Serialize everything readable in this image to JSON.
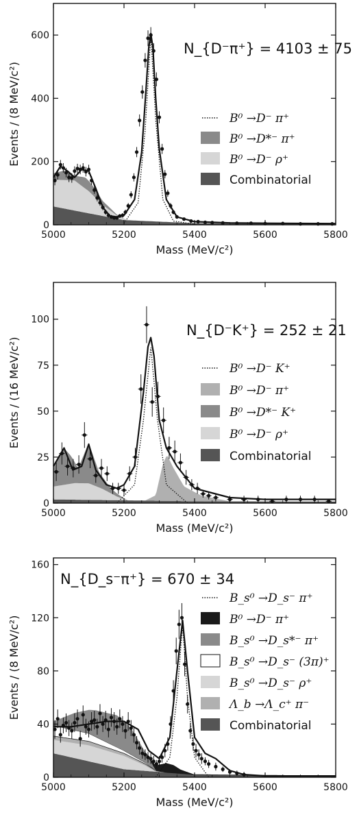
{
  "chart_data": [
    {
      "type": "line",
      "xlabel": "Mass (MeV/c²)",
      "ylabel": "Events / (8 MeV/c²)",
      "xlim": [
        5000,
        5800
      ],
      "ylim": [
        0,
        700
      ],
      "xticks": [
        "5000",
        "5200",
        "5400",
        "5600",
        "5800"
      ],
      "yticks": [
        "0",
        "200",
        "400",
        "600"
      ],
      "yield_label": "N_{D⁻π⁺} = 4103 ± 75",
      "legend": [
        {
          "style": "dotted",
          "text": "B⁰ →D⁻ π⁺"
        },
        {
          "style": "fill",
          "color": "#8a8a8a",
          "text": "B⁰ →D*⁻ π⁺"
        },
        {
          "style": "fill",
          "color": "#d6d6d6",
          "text": "B⁰ →D⁻ ρ⁺"
        },
        {
          "style": "fill",
          "color": "#555555",
          "text": "Combinatorial"
        }
      ],
      "components": {
        "combinatorial": {
          "x": [
            5000,
            5200,
            5400,
            5800
          ],
          "y": [
            58,
            15,
            5,
            3
          ]
        },
        "rho": {
          "x": [
            5000,
            5060,
            5100,
            5140,
            5180,
            5210
          ],
          "y": [
            85,
            95,
            70,
            35,
            10,
            0
          ]
        },
        "dstar": {
          "x": [
            5000,
            5030,
            5060,
            5090,
            5110,
            5140,
            5180,
            5210
          ],
          "y": [
            20,
            30,
            15,
            35,
            30,
            12,
            3,
            0
          ]
        },
        "signal_dotted": {
          "x": [
            5200,
            5240,
            5260,
            5276,
            5290,
            5310,
            5340,
            5400
          ],
          "y": [
            5,
            70,
            300,
            600,
            330,
            80,
            12,
            2
          ]
        },
        "total": {
          "x": [
            5000,
            5020,
            5040,
            5060,
            5080,
            5100,
            5120,
            5140,
            5160,
            5180,
            5200,
            5230,
            5250,
            5262,
            5270,
            5276,
            5282,
            5290,
            5300,
            5320,
            5350,
            5400,
            5500,
            5600,
            5800
          ],
          "y": [
            150,
            185,
            170,
            150,
            175,
            170,
            115,
            55,
            28,
            25,
            30,
            80,
            230,
            420,
            560,
            605,
            560,
            400,
            240,
            80,
            25,
            10,
            6,
            5,
            4
          ]
        }
      },
      "points": {
        "x": [
          5004,
          5012,
          5020,
          5028,
          5036,
          5044,
          5052,
          5060,
          5068,
          5076,
          5084,
          5092,
          5100,
          5108,
          5116,
          5124,
          5132,
          5140,
          5148,
          5156,
          5164,
          5172,
          5180,
          5188,
          5196,
          5204,
          5212,
          5220,
          5228,
          5236,
          5244,
          5252,
          5260,
          5268,
          5276,
          5284,
          5292,
          5300,
          5308,
          5316,
          5324,
          5332,
          5340,
          5350,
          5370,
          5390,
          5410,
          5430,
          5450,
          5480,
          5520,
          5560,
          5600,
          5650,
          5700,
          5750,
          5790
        ],
        "y": [
          140,
          158,
          190,
          180,
          165,
          150,
          148,
          170,
          178,
          175,
          180,
          168,
          175,
          140,
          110,
          85,
          70,
          55,
          40,
          30,
          25,
          22,
          22,
          28,
          30,
          40,
          60,
          95,
          150,
          230,
          330,
          420,
          520,
          590,
          600,
          550,
          460,
          340,
          240,
          160,
          100,
          60,
          40,
          25,
          18,
          12,
          10,
          8,
          7,
          6,
          5,
          5,
          4,
          4,
          3,
          3,
          3
        ],
        "err": [
          15,
          15,
          15,
          15,
          15,
          15,
          15,
          15,
          15,
          15,
          15,
          15,
          15,
          14,
          12,
          11,
          10,
          9,
          8,
          7,
          6,
          6,
          6,
          6,
          7,
          8,
          9,
          11,
          13,
          16,
          19,
          21,
          23,
          25,
          25,
          24,
          22,
          19,
          16,
          13,
          11,
          9,
          7,
          6,
          5,
          4,
          4,
          3,
          3,
          3,
          3,
          3,
          2,
          2,
          2,
          2,
          2
        ]
      }
    },
    {
      "type": "line",
      "xlabel": "Mass (MeV/c²)",
      "ylabel": "Events / (16 MeV/c²)",
      "xlim": [
        5000,
        5800
      ],
      "ylim": [
        0,
        120
      ],
      "xticks": [
        "5000",
        "5200",
        "5400",
        "5600",
        "5800"
      ],
      "yticks": [
        "0",
        "25",
        "50",
        "75",
        "100"
      ],
      "yield_label": "N_{D⁻K⁺} = 252 ± 21",
      "legend": [
        {
          "style": "dotted",
          "text": "B⁰ →D⁻ K⁺"
        },
        {
          "style": "fill",
          "color": "#b0b0b0",
          "text": "B⁰ →D⁻ π⁺"
        },
        {
          "style": "fill",
          "color": "#8a8a8a",
          "text": "B⁰ →D*⁻ K⁺"
        },
        {
          "style": "fill",
          "color": "#d6d6d6",
          "text": "B⁰ →D⁻ ρ⁺"
        },
        {
          "style": "fill",
          "color": "#555555",
          "text": "Combinatorial"
        }
      ],
      "components": {
        "combinatorial": {
          "x": [
            5000,
            5200,
            5400,
            5800
          ],
          "y": [
            2,
            1.5,
            1,
            0.8
          ]
        },
        "rho": {
          "x": [
            5000,
            5060,
            5100,
            5140,
            5180,
            5210
          ],
          "y": [
            7,
            9,
            9,
            6,
            2,
            0
          ]
        },
        "dstar": {
          "x": [
            5000,
            5030,
            5050,
            5070,
            5100,
            5130,
            5160,
            5190,
            5210
          ],
          "y": [
            10,
            20,
            15,
            8,
            22,
            8,
            3,
            1,
            0
          ]
        },
        "dpi": {
          "x": [
            5260,
            5290,
            5310,
            5322,
            5340,
            5370,
            5420,
            5500
          ],
          "y": [
            0,
            3,
            20,
            25,
            18,
            8,
            3,
            0
          ]
        },
        "signal_dotted": {
          "x": [
            5180,
            5230,
            5255,
            5276,
            5295,
            5320,
            5380
          ],
          "y": [
            0,
            10,
            45,
            85,
            45,
            10,
            0
          ]
        },
        "total": {
          "x": [
            5000,
            5030,
            5055,
            5080,
            5100,
            5120,
            5150,
            5180,
            5200,
            5230,
            5255,
            5268,
            5276,
            5285,
            5300,
            5320,
            5350,
            5400,
            5500,
            5600,
            5800
          ],
          "y": [
            20,
            30,
            18,
            20,
            32,
            18,
            10,
            8,
            10,
            20,
            60,
            85,
            90,
            80,
            45,
            30,
            20,
            8,
            3,
            2,
            2
          ]
        }
      },
      "points": {
        "x": [
          5008,
          5024,
          5040,
          5056,
          5072,
          5088,
          5104,
          5120,
          5136,
          5152,
          5168,
          5184,
          5200,
          5216,
          5232,
          5248,
          5264,
          5280,
          5296,
          5312,
          5328,
          5344,
          5360,
          5376,
          5392,
          5408,
          5424,
          5440,
          5460,
          5500,
          5540,
          5580,
          5620,
          5660,
          5700,
          5740,
          5780
        ],
        "y": [
          17,
          27,
          20,
          19,
          21,
          37,
          24,
          15,
          19,
          16,
          8,
          8,
          7,
          16,
          25,
          62,
          97,
          55,
          58,
          45,
          30,
          28,
          22,
          14,
          10,
          8,
          5,
          4,
          3,
          2,
          2,
          2,
          1,
          2,
          2,
          2,
          1
        ],
        "err": [
          5,
          6,
          5,
          5,
          5,
          7,
          5,
          4,
          5,
          4,
          3,
          3,
          3,
          4,
          5,
          8,
          10,
          8,
          8,
          7,
          6,
          6,
          5,
          4,
          3,
          3,
          2,
          2,
          2,
          2,
          2,
          2,
          1,
          2,
          2,
          2,
          1
        ]
      }
    },
    {
      "type": "line",
      "xlabel": "Mass (MeV/c²)",
      "ylabel": "Events / (8 MeV/c²)",
      "xlim": [
        5000,
        5800
      ],
      "ylim": [
        0,
        165
      ],
      "xticks": [
        "5000",
        "5200",
        "5400",
        "5600",
        "5800"
      ],
      "yticks": [
        "0",
        "40",
        "80",
        "120",
        "160"
      ],
      "yield_label": "N_{D_s⁻π⁺} = 670 ± 34",
      "legend": [
        {
          "style": "dotted",
          "text": "B_s⁰ →D_s⁻ π⁺"
        },
        {
          "style": "fill",
          "color": "#1a1a1a",
          "text": "B⁰ →D⁻ π⁺"
        },
        {
          "style": "fill",
          "color": "#8a8a8a",
          "text": "B_s⁰ →D_s*⁻ π⁺"
        },
        {
          "style": "fill",
          "color": "#ffffff",
          "text": "B_s⁰ →D_s⁻ (3π)⁺"
        },
        {
          "style": "fill",
          "color": "#d6d6d6",
          "text": "B_s⁰ →D_s⁻ ρ⁺"
        },
        {
          "style": "fill",
          "color": "#b0b0b0",
          "text": "Λ_b →Λ_c⁺ π⁻"
        },
        {
          "style": "fill",
          "color": "#555555",
          "text": "Combinatorial"
        }
      ],
      "components": {
        "combinatorial": {
          "x": [
            5000,
            5200,
            5400,
            5800
          ],
          "y": [
            18,
            6,
            2,
            1
          ]
        },
        "rho": {
          "x": [
            5000,
            5100,
            5200,
            5260,
            5290
          ],
          "y": [
            10,
            12,
            10,
            4,
            0
          ]
        },
        "lambda_b": {
          "x": [
            5000,
            5100,
            5200,
            5280,
            5320
          ],
          "y": [
            3,
            3,
            2,
            1,
            0
          ]
        },
        "three_pi": {
          "x": [
            5000,
            5100,
            5200,
            5260,
            5290
          ],
          "y": [
            8,
            6,
            2,
            1,
            0
          ]
        },
        "dstar": {
          "x": [
            5000,
            5060,
            5120,
            5180,
            5220,
            5260,
            5290
          ],
          "y": [
            3,
            13,
            20,
            24,
            20,
            8,
            0
          ]
        },
        "b0_dpi": {
          "x": [
            5260,
            5300,
            5320,
            5340,
            5360,
            5400
          ],
          "y": [
            0,
            5,
            7,
            6,
            3,
            0
          ]
        },
        "signal_dotted": {
          "x": [
            5290,
            5330,
            5350,
            5366,
            5380,
            5400,
            5440
          ],
          "y": [
            0,
            15,
            60,
            115,
            60,
            15,
            0
          ]
        },
        "total": {
          "x": [
            5000,
            5050,
            5100,
            5150,
            5200,
            5240,
            5270,
            5300,
            5330,
            5350,
            5366,
            5380,
            5400,
            5430,
            5460,
            5500,
            5540,
            5600,
            5800
          ],
          "y": [
            38,
            38,
            40,
            42,
            42,
            36,
            20,
            14,
            30,
            80,
            118,
            80,
            30,
            18,
            14,
            5,
            2,
            1,
            1
          ]
        }
      },
      "points": {
        "x": [
          5004,
          5012,
          5020,
          5028,
          5036,
          5044,
          5052,
          5060,
          5068,
          5076,
          5084,
          5092,
          5100,
          5108,
          5116,
          5124,
          5132,
          5140,
          5148,
          5156,
          5164,
          5172,
          5180,
          5188,
          5196,
          5204,
          5212,
          5220,
          5228,
          5236,
          5244,
          5252,
          5260,
          5268,
          5276,
          5284,
          5292,
          5300,
          5308,
          5316,
          5324,
          5332,
          5340,
          5348,
          5356,
          5364,
          5372,
          5380,
          5388,
          5396,
          5404,
          5412,
          5420,
          5430,
          5440,
          5460,
          5480,
          5500,
          5520,
          5540
        ],
        "y": [
          36,
          44,
          32,
          39,
          41,
          37,
          35,
          41,
          44,
          29,
          47,
          38,
          36,
          42,
          43,
          38,
          48,
          40,
          43,
          36,
          45,
          42,
          38,
          44,
          40,
          35,
          42,
          37,
          32,
          26,
          22,
          18,
          17,
          15,
          14,
          12,
          10,
          12,
          15,
          20,
          25,
          40,
          65,
          95,
          115,
          120,
          85,
          55,
          35,
          25,
          20,
          17,
          14,
          12,
          10,
          8,
          6,
          4,
          3,
          2
        ],
        "err": [
          7,
          7,
          6,
          6,
          7,
          6,
          6,
          7,
          7,
          6,
          7,
          6,
          6,
          7,
          7,
          6,
          7,
          6,
          7,
          6,
          7,
          7,
          6,
          7,
          6,
          6,
          7,
          6,
          6,
          5,
          5,
          4,
          4,
          4,
          4,
          4,
          3,
          4,
          4,
          5,
          5,
          6,
          8,
          10,
          11,
          11,
          9,
          7,
          6,
          5,
          5,
          4,
          4,
          3,
          3,
          3,
          2,
          2,
          2,
          2
        ]
      }
    }
  ]
}
